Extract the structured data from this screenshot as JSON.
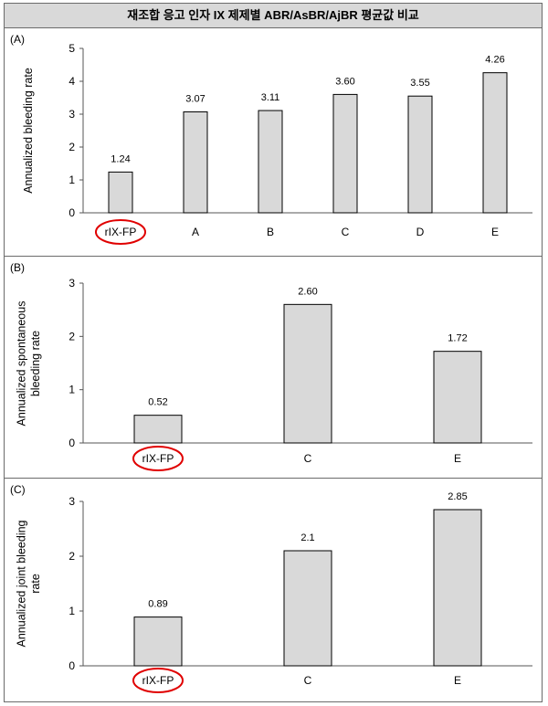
{
  "title": "재조합 응고 인자 IX 제제별 ABR/AsBR/AjBR 평균값 비교",
  "colors": {
    "bar_fill": "#d9d9d9",
    "bar_stroke": "#000000",
    "axis": "#555555",
    "highlight_ring": "#e00000"
  },
  "highlighted_category": "rIX-FP",
  "chart_data": [
    {
      "type": "bar",
      "panel_label": "(A)",
      "ylabel": "Annualized bleeding rate",
      "ylim": [
        0,
        5
      ],
      "yticks": [
        "0",
        "1",
        "2",
        "3",
        "4",
        "5"
      ],
      "categories": [
        "rIX-FP",
        "A",
        "B",
        "C",
        "D",
        "E"
      ],
      "values": [
        1.24,
        3.07,
        3.11,
        3.6,
        3.55,
        4.26
      ],
      "data_labels": [
        "1.24",
        "3.07",
        "3.11",
        "3.60",
        "3.55",
        "4.26"
      ]
    },
    {
      "type": "bar",
      "panel_label": "(B)",
      "ylabel": [
        "Annualized spontaneous",
        "bleeding rate"
      ],
      "ylim": [
        0,
        3
      ],
      "yticks": [
        "0",
        "1",
        "2",
        "3"
      ],
      "categories": [
        "rIX-FP",
        "C",
        "E"
      ],
      "values": [
        0.52,
        2.6,
        1.72
      ],
      "data_labels": [
        "0.52",
        "2.60",
        "1.72"
      ]
    },
    {
      "type": "bar",
      "panel_label": "(C)",
      "ylabel": [
        "Annualized joint bleeding",
        "rate"
      ],
      "ylim": [
        0,
        3
      ],
      "yticks": [
        "0",
        "1",
        "2",
        "3"
      ],
      "categories": [
        "rIX-FP",
        "C",
        "E"
      ],
      "values": [
        0.89,
        2.1,
        2.85
      ],
      "data_labels": [
        "0.89",
        "2.1",
        "2.85"
      ]
    }
  ]
}
